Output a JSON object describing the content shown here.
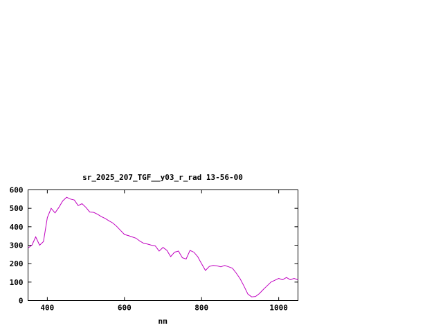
{
  "window": {
    "background_color": "#ffffff"
  },
  "chart_data": {
    "type": "line",
    "title": "sr_2025_207_TGF__y03_r_rad 13-56-00",
    "xlabel": "nm",
    "ylabel": "",
    "xlim": [
      350,
      1050
    ],
    "ylim": [
      0,
      600
    ],
    "xticks": [
      400,
      600,
      800,
      1000
    ],
    "yticks": [
      0,
      100,
      200,
      300,
      400,
      500,
      600
    ],
    "grid": false,
    "legend": "none",
    "line_color": "#c000c0",
    "axis_color": "#000000",
    "series": [
      {
        "x": [
          350,
          360,
          370,
          380,
          390,
          400,
          410,
          420,
          430,
          440,
          450,
          460,
          470,
          480,
          490,
          500,
          510,
          520,
          530,
          540,
          550,
          560,
          570,
          580,
          590,
          600,
          610,
          620,
          630,
          640,
          650,
          660,
          670,
          680,
          690,
          700,
          710,
          720,
          730,
          740,
          750,
          760,
          770,
          780,
          790,
          800,
          810,
          820,
          830,
          840,
          850,
          860,
          870,
          880,
          890,
          900,
          910,
          920,
          930,
          940,
          950,
          960,
          970,
          980,
          990,
          1000,
          1010,
          1020,
          1030,
          1040,
          1050
        ],
        "y": [
          285,
          300,
          345,
          300,
          320,
          450,
          500,
          475,
          505,
          540,
          560,
          550,
          545,
          515,
          525,
          505,
          480,
          478,
          468,
          455,
          445,
          432,
          420,
          402,
          380,
          358,
          352,
          345,
          338,
          322,
          310,
          306,
          300,
          296,
          268,
          288,
          272,
          238,
          262,
          268,
          232,
          225,
          272,
          262,
          238,
          200,
          163,
          185,
          190,
          188,
          183,
          190,
          183,
          175,
          148,
          118,
          78,
          35,
          20,
          22,
          38,
          60,
          80,
          100,
          110,
          120,
          113,
          125,
          113,
          120,
          112
        ]
      }
    ]
  }
}
